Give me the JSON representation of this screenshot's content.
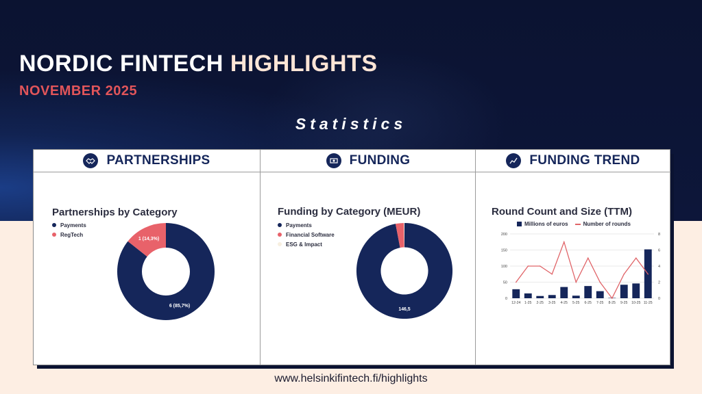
{
  "header": {
    "title_part1": "NORDIC FINTECH",
    "title_part2": "HIGHLIGHTS",
    "subtitle": "NOVEMBER 2025",
    "section": "Statistics"
  },
  "columns": [
    {
      "heading": "PARTNERSHIPS",
      "icon": "handshake-icon"
    },
    {
      "heading": "FUNDING",
      "icon": "money-icon"
    },
    {
      "heading": "FUNDING TREND",
      "icon": "trend-icon"
    }
  ],
  "footer": {
    "url": "www.helsinkifintech.fi/highlights"
  },
  "colors": {
    "navy": "#15265a",
    "coral": "#e8626a",
    "light": "#f7efe0"
  },
  "chart_data": [
    {
      "type": "pie",
      "title": "Partnerships by Category",
      "legend_position": "top-left",
      "categories": [
        "Payments",
        "RegTech"
      ],
      "values": [
        6,
        1
      ],
      "data_labels": [
        "6 (85,7%)",
        "1 (14,3%)"
      ],
      "colors": [
        "#15265a",
        "#e8626a"
      ]
    },
    {
      "type": "pie",
      "title": "Funding by Category (MEUR)",
      "legend_position": "top-left",
      "categories": [
        "Payments",
        "Financial Software",
        "ESG & Impact"
      ],
      "values": [
        146.5,
        4.2,
        0.3
      ],
      "data_labels": [
        "146,5",
        "",
        ""
      ],
      "colors": [
        "#15265a",
        "#e8626a",
        "#f7efe0"
      ]
    },
    {
      "type": "bar",
      "title": "Round Count and Size (TTM)",
      "legend_position": "top",
      "categories": [
        "12-24",
        "1-25",
        "2-25",
        "3-25",
        "4-25",
        "5-25",
        "6-25",
        "7-25",
        "8-25",
        "9-25",
        "10-25",
        "11-25"
      ],
      "series": [
        {
          "name": "Millions of euros",
          "type": "bar",
          "axis": "left",
          "values": [
            28,
            15,
            7,
            10,
            35,
            8,
            38,
            22,
            1,
            42,
            46,
            152
          ]
        },
        {
          "name": "Number of rounds",
          "type": "line",
          "axis": "right",
          "values": [
            2,
            4,
            4,
            3,
            7,
            2,
            5,
            2,
            0,
            3,
            5,
            3
          ]
        }
      ],
      "ylim_left": [
        0,
        200
      ],
      "yticks_left": [
        0,
        50,
        100,
        150,
        200
      ],
      "ylim_right": [
        0,
        8
      ],
      "yticks_right": [
        0,
        2,
        4,
        6,
        8
      ],
      "grid": true
    }
  ]
}
